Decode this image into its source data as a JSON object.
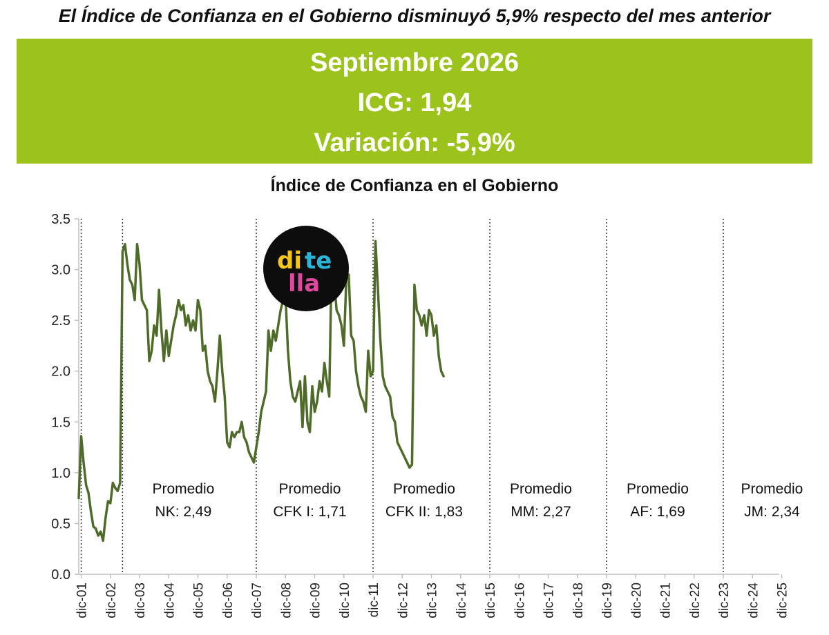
{
  "headline": "El Índice de Confianza en el Gobierno disminuyó 5,9% respecto del mes anterior",
  "banner": {
    "line1": "Septiembre 2026",
    "line2": "ICG: 1,94",
    "line3": "Variación: -5,9%"
  },
  "logo": {
    "text_top": "di te",
    "text_bottom": "lla",
    "alt": "ditella"
  },
  "colors": {
    "banner": "#9bc31c",
    "line": "#4f6b2a",
    "axis": "#bfbfbf"
  },
  "chart_data": {
    "type": "line",
    "title": "Índice de Confianza en el Gobierno",
    "xlabel": "",
    "ylabel": "",
    "ylim": [
      0,
      3.5
    ],
    "yticks": [
      "0.0",
      "0.5",
      "1.0",
      "1.5",
      "2.0",
      "2.5",
      "3.0",
      "3.5"
    ],
    "xticks": [
      "dic-01",
      "dic-02",
      "dic-03",
      "dic-04",
      "dic-05",
      "dic-06",
      "dic-07",
      "dic-08",
      "dic-09",
      "dic-10",
      "dic-11",
      "dic-12",
      "dic-13",
      "dic-14",
      "dic-15",
      "dic-16",
      "dic-17",
      "dic-18",
      "dic-19",
      "dic-20",
      "dic-21",
      "dic-22",
      "dic-23",
      "dic-24",
      "dic-25"
    ],
    "grid": false,
    "legend": "none",
    "government_changes": [
      "2001-12",
      "2003-05",
      "2007-12",
      "2011-12",
      "2015-12",
      "2019-12",
      "2023-12"
    ],
    "annotations": [
      {
        "x": "2005-06",
        "line1": "Promedio",
        "line2": "NK: 2,49"
      },
      {
        "x": "2009-10",
        "line1": "Promedio",
        "line2": "CFK I: 1,71"
      },
      {
        "x": "2013-09",
        "line1": "Promedio",
        "line2": "CFK II: 1,83"
      },
      {
        "x": "2017-09",
        "line1": "Promedio",
        "line2": "MM: 2,27"
      },
      {
        "x": "2021-09",
        "line1": "Promedio",
        "line2": "AF: 1,69"
      },
      {
        "x": "2025-08",
        "line1": "Promedio",
        "line2": "JM: 2,34"
      }
    ],
    "series": [
      {
        "points": [
          [
            "2001-11",
            0.75
          ],
          [
            "2001-12",
            1.36
          ],
          [
            "2002-01",
            1.1
          ],
          [
            "2002-02",
            0.88
          ],
          [
            "2002-03",
            0.8
          ],
          [
            "2002-04",
            0.62
          ],
          [
            "2002-05",
            0.47
          ],
          [
            "2002-06",
            0.45
          ],
          [
            "2002-07",
            0.38
          ],
          [
            "2002-08",
            0.42
          ],
          [
            "2002-09",
            0.33
          ],
          [
            "2002-10",
            0.55
          ],
          [
            "2002-11",
            0.72
          ],
          [
            "2002-12",
            0.7
          ],
          [
            "2003-01",
            0.9
          ],
          [
            "2003-02",
            0.85
          ],
          [
            "2003-03",
            0.82
          ],
          [
            "2003-04",
            0.9
          ],
          [
            "2003-05",
            3.18
          ],
          [
            "2003-06",
            3.25
          ],
          [
            "2003-07",
            3.05
          ],
          [
            "2003-08",
            2.9
          ],
          [
            "2003-09",
            2.85
          ],
          [
            "2003-10",
            2.7
          ],
          [
            "2003-11",
            3.25
          ],
          [
            "2003-12",
            3.05
          ],
          [
            "2004-01",
            2.7
          ],
          [
            "2004-02",
            2.65
          ],
          [
            "2004-03",
            2.6
          ],
          [
            "2004-04",
            2.1
          ],
          [
            "2004-05",
            2.2
          ],
          [
            "2004-06",
            2.45
          ],
          [
            "2004-07",
            2.35
          ],
          [
            "2004-08",
            2.8
          ],
          [
            "2004-09",
            2.4
          ],
          [
            "2004-10",
            2.1
          ],
          [
            "2004-11",
            2.4
          ],
          [
            "2004-12",
            2.15
          ],
          [
            "2005-01",
            2.3
          ],
          [
            "2005-02",
            2.45
          ],
          [
            "2005-03",
            2.55
          ],
          [
            "2005-04",
            2.7
          ],
          [
            "2005-05",
            2.6
          ],
          [
            "2005-06",
            2.65
          ],
          [
            "2005-07",
            2.45
          ],
          [
            "2005-08",
            2.55
          ],
          [
            "2005-09",
            2.4
          ],
          [
            "2005-10",
            2.5
          ],
          [
            "2005-11",
            2.4
          ],
          [
            "2005-12",
            2.7
          ],
          [
            "2006-01",
            2.6
          ],
          [
            "2006-02",
            2.2
          ],
          [
            "2006-03",
            2.25
          ],
          [
            "2006-04",
            2.0
          ],
          [
            "2006-05",
            1.9
          ],
          [
            "2006-06",
            1.85
          ],
          [
            "2006-07",
            1.7
          ],
          [
            "2006-08",
            2.0
          ],
          [
            "2006-09",
            2.35
          ],
          [
            "2006-10",
            2.0
          ],
          [
            "2006-11",
            1.75
          ],
          [
            "2006-12",
            1.3
          ],
          [
            "2007-01",
            1.25
          ],
          [
            "2007-02",
            1.4
          ],
          [
            "2007-03",
            1.35
          ],
          [
            "2007-04",
            1.4
          ],
          [
            "2007-05",
            1.4
          ],
          [
            "2007-06",
            1.5
          ],
          [
            "2007-07",
            1.35
          ],
          [
            "2007-08",
            1.3
          ],
          [
            "2007-09",
            1.2
          ],
          [
            "2007-10",
            1.15
          ],
          [
            "2007-11",
            1.1
          ],
          [
            "2007-12",
            1.25
          ],
          [
            "2008-01",
            1.4
          ],
          [
            "2008-02",
            1.6
          ],
          [
            "2008-03",
            1.7
          ],
          [
            "2008-04",
            1.8
          ],
          [
            "2008-05",
            2.4
          ],
          [
            "2008-06",
            2.2
          ],
          [
            "2008-07",
            2.4
          ],
          [
            "2008-08",
            2.3
          ],
          [
            "2008-09",
            2.45
          ],
          [
            "2008-10",
            2.6
          ],
          [
            "2008-11",
            2.7
          ],
          [
            "2008-12",
            2.74
          ],
          [
            "2009-01",
            2.2
          ],
          [
            "2009-02",
            1.9
          ],
          [
            "2009-03",
            1.75
          ],
          [
            "2009-04",
            1.7
          ],
          [
            "2009-05",
            1.8
          ],
          [
            "2009-06",
            1.9
          ],
          [
            "2009-07",
            1.45
          ],
          [
            "2009-08",
            1.95
          ],
          [
            "2009-09",
            1.5
          ],
          [
            "2009-10",
            1.4
          ],
          [
            "2009-11",
            1.85
          ],
          [
            "2009-12",
            1.6
          ],
          [
            "2010-01",
            1.7
          ],
          [
            "2010-02",
            1.9
          ],
          [
            "2010-03",
            1.8
          ],
          [
            "2010-04",
            2.08
          ],
          [
            "2010-05",
            1.9
          ],
          [
            "2010-06",
            1.75
          ],
          [
            "2010-07",
            3.13
          ],
          [
            "2010-08",
            2.9
          ],
          [
            "2010-09",
            2.6
          ],
          [
            "2010-10",
            2.55
          ],
          [
            "2010-11",
            2.45
          ],
          [
            "2010-12",
            2.25
          ],
          [
            "2011-01",
            2.9
          ],
          [
            "2011-02",
            2.95
          ],
          [
            "2011-03",
            2.35
          ],
          [
            "2011-04",
            2.3
          ],
          [
            "2011-05",
            2.0
          ],
          [
            "2011-06",
            1.85
          ],
          [
            "2011-07",
            1.75
          ],
          [
            "2011-08",
            1.7
          ],
          [
            "2011-09",
            1.6
          ],
          [
            "2011-10",
            2.2
          ],
          [
            "2011-11",
            1.95
          ],
          [
            "2011-12",
            2.0
          ],
          [
            "2012-01",
            3.28
          ],
          [
            "2012-02",
            2.8
          ],
          [
            "2012-03",
            2.3
          ],
          [
            "2012-04",
            1.95
          ],
          [
            "2012-05",
            1.85
          ],
          [
            "2012-06",
            1.8
          ],
          [
            "2012-07",
            1.75
          ],
          [
            "2012-08",
            1.55
          ],
          [
            "2012-09",
            1.5
          ],
          [
            "2012-10",
            1.3
          ],
          [
            "2012-11",
            1.25
          ],
          [
            "2012-12",
            1.2
          ],
          [
            "2013-01",
            1.15
          ],
          [
            "2013-02",
            1.1
          ],
          [
            "2013-03",
            1.05
          ],
          [
            "2013-04",
            1.08
          ],
          [
            "2013-05",
            2.85
          ],
          [
            "2013-06",
            2.6
          ],
          [
            "2013-07",
            2.55
          ],
          [
            "2013-08",
            2.45
          ],
          [
            "2013-09",
            2.55
          ],
          [
            "2013-10",
            2.35
          ],
          [
            "2013-11",
            2.6
          ],
          [
            "2013-12",
            2.55
          ],
          [
            "2014-01",
            2.35
          ],
          [
            "2014-02",
            2.45
          ],
          [
            "2014-03",
            2.15
          ],
          [
            "2014-04",
            2.0
          ],
          [
            "2014-05",
            1.95
          ]
        ]
      }
    ]
  }
}
